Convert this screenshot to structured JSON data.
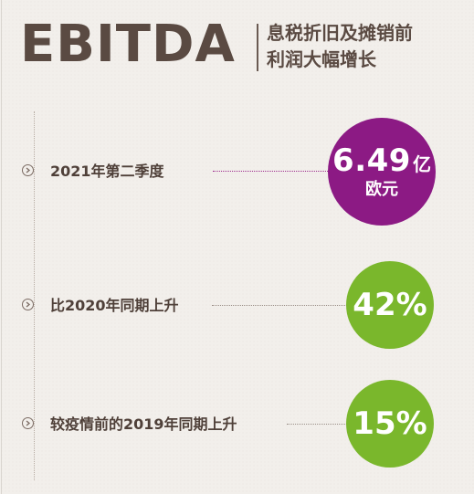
{
  "header": {
    "title": "EBITDA",
    "subtitle_line1": "息税折旧及摊销前",
    "subtitle_line2": "利润大幅增长"
  },
  "rows": [
    {
      "label": "2021年第二季度",
      "value": "6.49",
      "unit": "亿",
      "currency": "欧元"
    },
    {
      "label": "比2020年同期上升",
      "value": "42%"
    },
    {
      "label": "较疫情前的2019年同期上升",
      "value": "15%"
    }
  ],
  "colors": {
    "title": "#5a4a42",
    "highlight_purple": "#8c1a84",
    "growth_green": "#7ab72c",
    "background": "#f2efeb"
  },
  "icons": [
    "chevron-right-icon"
  ]
}
